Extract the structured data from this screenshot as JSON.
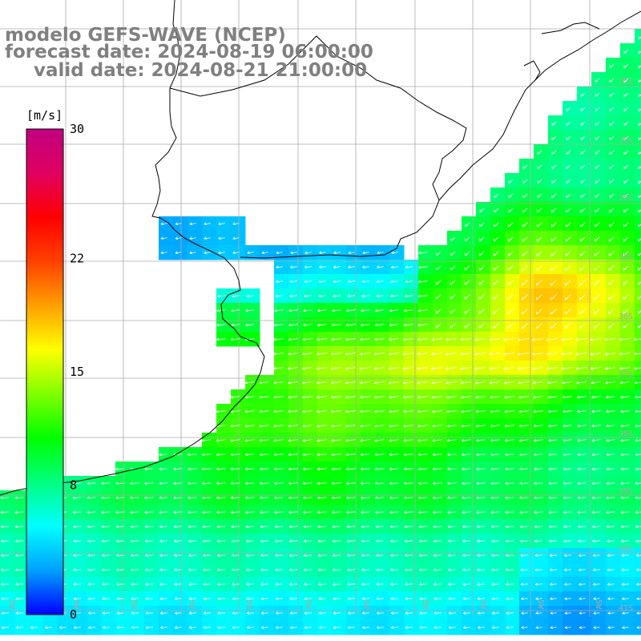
{
  "titles": {
    "model": "modelo GEFS-WAVE (NCEP)",
    "forecast": "forecast date: 2024-08-19 06:00:00",
    "valid": "valid date: 2024-08-21 21:00:00"
  },
  "colorbar": {
    "unit": "[m/s]",
    "ticks": [
      "30",
      "22",
      "15",
      "8",
      "0"
    ],
    "tick_values": [
      30,
      22,
      15,
      8,
      0
    ],
    "min": 0,
    "max": 30,
    "colors": [
      "#0000ff",
      "#00a0ff",
      "#00ffff",
      "#00ff80",
      "#00ff00",
      "#80ff00",
      "#ffff00",
      "#ffa000",
      "#ff4000",
      "#ff0000",
      "#e00060",
      "#c00080"
    ]
  },
  "map": {
    "lat_labels": [
      "35S",
      "35S",
      "35S",
      "35S",
      "36S",
      "37S",
      "38S",
      "39S",
      "40S",
      "41S"
    ],
    "lon_labels": [
      "5W",
      "5W",
      "5W",
      "5W",
      "5W",
      "5W",
      "5W",
      "5W",
      "5W",
      "5W",
      "5W"
    ],
    "arrow_color": "#ffffff",
    "coast_color": "#000000",
    "grid_color": "#aaaaaa"
  }
}
